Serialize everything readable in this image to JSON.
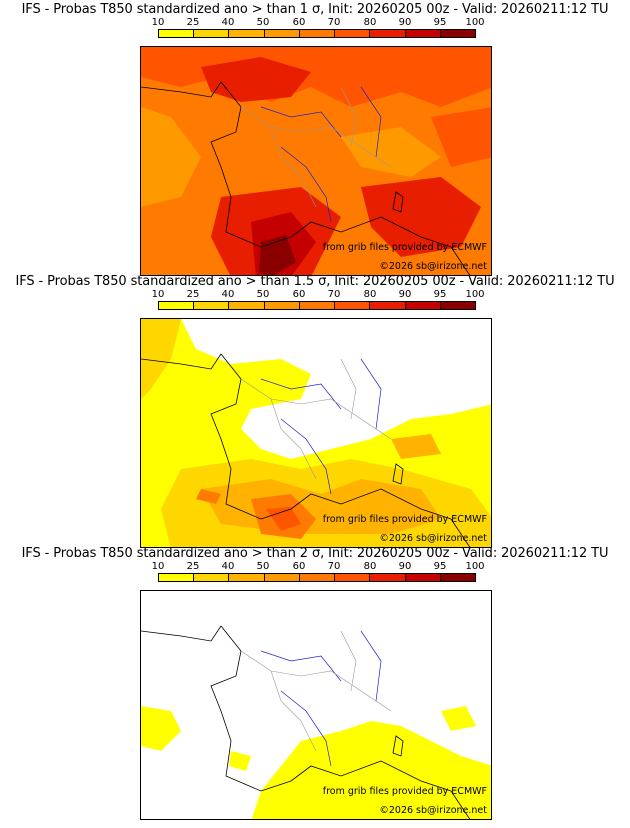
{
  "colorbar": {
    "ticks": [
      "10",
      "25",
      "40",
      "50",
      "60",
      "70",
      "80",
      "90",
      "95",
      "100"
    ],
    "colors": [
      "#ffff00",
      "#ffd700",
      "#ffb300",
      "#ff9900",
      "#ff7a00",
      "#ff5500",
      "#e81e00",
      "#c40000",
      "#8a0000"
    ]
  },
  "credits": {
    "source": "from grib files provided by ECMWF",
    "copyright": "©2026 sb@irizone.net"
  },
  "panels": [
    {
      "title": "IFS - Probas T850  standardized ano > than 1 σ, Init: 20260205 00z - Valid: 20260211:12 TU"
    },
    {
      "title": "IFS - Probas T850  standardized ano > than 1.5 σ, Init: 20260205 00z - Valid: 20260211:12 TU"
    },
    {
      "title": "IFS - Probas T850  standardized ano > than 2 σ, Init: 20260205 00z - Valid: 20260211:12 TU"
    }
  ]
}
